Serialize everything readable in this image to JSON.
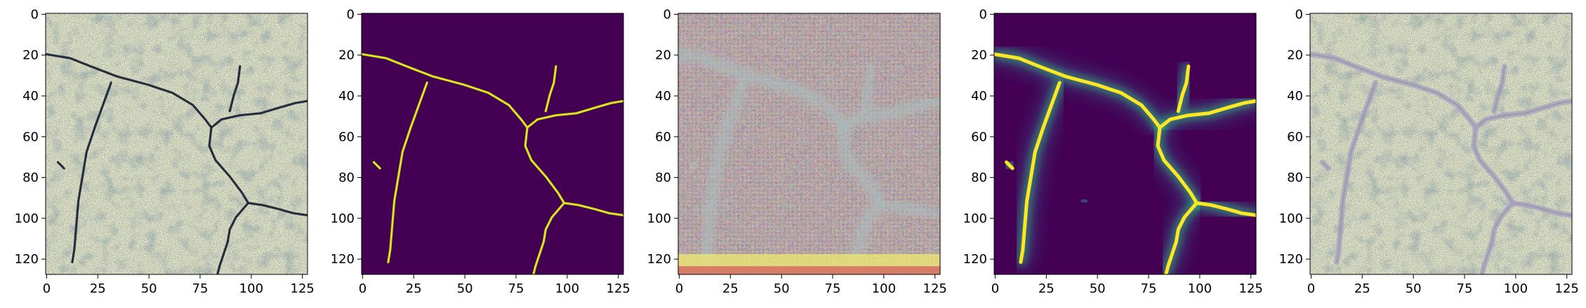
{
  "figure": {
    "panels": [
      {
        "name": "panel-input-crack-image",
        "style": "photo"
      },
      {
        "name": "panel-ground-truth-mask",
        "style": "mask"
      },
      {
        "name": "panel-generated-texture",
        "style": "synth"
      },
      {
        "name": "panel-predicted-heatmap",
        "style": "heat"
      },
      {
        "name": "panel-overlay-result",
        "style": "overlay"
      }
    ],
    "x_ticks": [
      "0",
      "25",
      "50",
      "75",
      "100",
      "125"
    ],
    "y_ticks": [
      "0",
      "20",
      "40",
      "60",
      "80",
      "100",
      "120"
    ],
    "colors": {
      "viridis_background": "#440154",
      "viridis_line": "#e2e418",
      "concrete_light": "#e6e7c7",
      "crack_dark": "#1e2536",
      "overlay_line": "#a8a2c0"
    }
  }
}
